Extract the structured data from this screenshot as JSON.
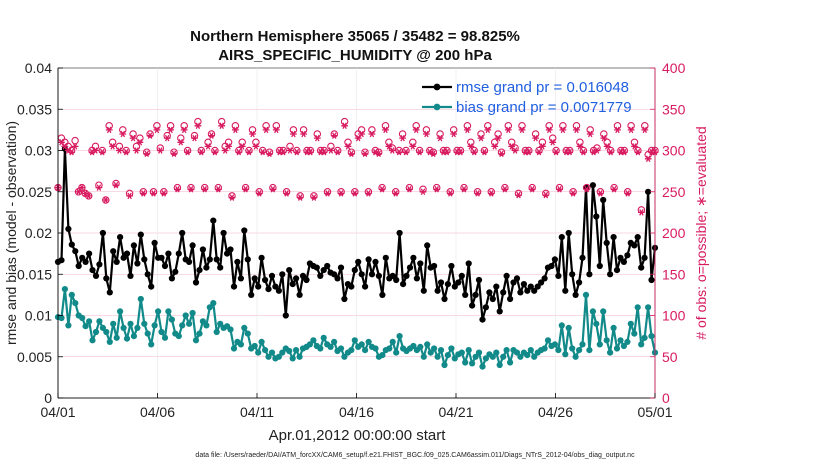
{
  "chart_data": {
    "type": "line",
    "title": "Northern Hemisphere 35065 / 35482 = 98.825%",
    "subtitle": "AIRS_SPECIFIC_HUMIDITY @ 200 hPa",
    "xlabel": "Apr.01,2012 00:00:00 start",
    "ylabel": "rmse and bias (model - observation)",
    "ylabel_right": "# of obs: o=possible; ∗=evaluated",
    "footnote": "data file: /Users/raeder/DAI/ATM_forcXX/CAM6_setup/f.e21.FHIST_BGC.f09_025.CAM6assim.011/Diags_NTrS_2012-04/obs_diag_output.nc",
    "xlim": [
      0,
      30
    ],
    "ylim": [
      0,
      0.04
    ],
    "ylim_right": [
      0,
      400
    ],
    "x_ticks": [
      "04/01",
      "04/06",
      "04/11",
      "04/16",
      "04/21",
      "04/26",
      "05/01"
    ],
    "x_tick_positions": [
      0,
      5,
      10,
      15,
      20,
      25,
      30
    ],
    "y_ticks": [
      "0",
      "0.005",
      "0.01",
      "0.015",
      "0.02",
      "0.025",
      "0.03",
      "0.035",
      "0.04"
    ],
    "y_tick_values": [
      0,
      0.005,
      0.01,
      0.015,
      0.02,
      0.025,
      0.03,
      0.035,
      0.04
    ],
    "y_right_ticks": [
      "0",
      "50",
      "100",
      "150",
      "200",
      "250",
      "300",
      "350",
      "400"
    ],
    "y_right_tick_values": [
      0,
      50,
      100,
      150,
      200,
      250,
      300,
      350,
      400
    ],
    "grid": true,
    "legend_position": "top-right",
    "series": [
      {
        "name": "rmse grand pr = 0.016048",
        "axis": "left",
        "color": "#000000",
        "values": [
          0.0165,
          0.0167,
          0.0302,
          0.0205,
          0.0186,
          0.0178,
          0.016,
          0.017,
          0.0165,
          0.0175,
          0.0155,
          0.0148,
          0.0162,
          0.02,
          0.0145,
          0.0128,
          0.0178,
          0.0165,
          0.0195,
          0.017,
          0.0175,
          0.0148,
          0.0185,
          0.0163,
          0.0198,
          0.0168,
          0.015,
          0.0135,
          0.0188,
          0.017,
          0.017,
          0.016,
          0.0175,
          0.0145,
          0.0153,
          0.0175,
          0.02,
          0.0168,
          0.0165,
          0.0185,
          0.014,
          0.0155,
          0.018,
          0.0158,
          0.0168,
          0.0215,
          0.0168,
          0.0158,
          0.02,
          0.0175,
          0.018,
          0.0135,
          0.0165,
          0.0145,
          0.0203,
          0.0168,
          0.0125,
          0.0145,
          0.0135,
          0.017,
          0.0143,
          0.0132,
          0.0148,
          0.0135,
          0.013,
          0.015,
          0.01,
          0.0155,
          0.0138,
          0.0145,
          0.0125,
          0.0148,
          0.0143,
          0.0163,
          0.016,
          0.0158,
          0.0148,
          0.0155,
          0.016,
          0.0152,
          0.015,
          0.0145,
          0.0158,
          0.012,
          0.0138,
          0.0135,
          0.0155,
          0.0165,
          0.015,
          0.0135,
          0.0168,
          0.015,
          0.0165,
          0.0148,
          0.0125,
          0.017,
          0.0145,
          0.0148,
          0.0143,
          0.02,
          0.0138,
          0.0148,
          0.0158,
          0.017,
          0.0145,
          0.0163,
          0.013,
          0.0185,
          0.0158,
          0.016,
          0.013,
          0.014,
          0.012,
          0.0138,
          0.016,
          0.0135,
          0.014,
          0.0148,
          0.0125,
          0.0163,
          0.0112,
          0.0125,
          0.0143,
          0.0095,
          0.011,
          0.0128,
          0.012,
          0.0135,
          0.0105,
          0.0128,
          0.0148,
          0.012,
          0.014,
          0.0145,
          0.0128,
          0.0138,
          0.013,
          0.0135,
          0.013,
          0.0135,
          0.014,
          0.0145,
          0.0158,
          0.016,
          0.0168,
          0.0148,
          0.0195,
          0.013,
          0.02,
          0.015,
          0.0125,
          0.014,
          0.017,
          0.0255,
          0.015,
          0.0258,
          0.022,
          0.016,
          0.024,
          0.0188,
          0.015,
          0.0195,
          0.0155,
          0.017,
          0.0165,
          0.0173,
          0.0188,
          0.0185,
          0.0195,
          0.0158,
          0.017,
          0.025,
          0.0143,
          0.0182
        ],
        "marker": "circle"
      },
      {
        "name": "bias grand pr = 0.0071779",
        "axis": "left",
        "color": "#138a8a",
        "values": [
          0.0098,
          0.0097,
          0.0132,
          0.0088,
          0.0125,
          0.0115,
          0.01,
          0.0097,
          0.0087,
          0.0093,
          0.007,
          0.008,
          0.0093,
          0.0085,
          0.008,
          0.0068,
          0.009,
          0.0073,
          0.0105,
          0.0085,
          0.0072,
          0.009,
          0.0075,
          0.0085,
          0.012,
          0.009,
          0.0078,
          0.0065,
          0.0088,
          0.0105,
          0.008,
          0.0073,
          0.0105,
          0.0095,
          0.0078,
          0.0075,
          0.0088,
          0.01,
          0.009,
          0.0103,
          0.007,
          0.0078,
          0.0093,
          0.0088,
          0.011,
          0.0115,
          0.008,
          0.009,
          0.0085,
          0.0087,
          0.0083,
          0.006,
          0.0068,
          0.0065,
          0.0085,
          0.0078,
          0.006,
          0.0063,
          0.0055,
          0.0068,
          0.0058,
          0.005,
          0.0055,
          0.0048,
          0.005,
          0.0055,
          0.006,
          0.0057,
          0.0048,
          0.0058,
          0.005,
          0.006,
          0.0062,
          0.0065,
          0.007,
          0.0063,
          0.006,
          0.0073,
          0.0065,
          0.0062,
          0.0068,
          0.0057,
          0.006,
          0.005,
          0.0055,
          0.0058,
          0.007,
          0.0062,
          0.0065,
          0.0058,
          0.0068,
          0.0062,
          0.006,
          0.005,
          0.0052,
          0.0058,
          0.006,
          0.0068,
          0.0055,
          0.0075,
          0.006,
          0.0057,
          0.006,
          0.0063,
          0.0058,
          0.0062,
          0.005,
          0.0065,
          0.0055,
          0.006,
          0.005,
          0.0058,
          0.004,
          0.0052,
          0.006,
          0.0048,
          0.0053,
          0.0055,
          0.0043,
          0.0058,
          0.0042,
          0.005,
          0.0055,
          0.0038,
          0.0048,
          0.0053,
          0.005,
          0.0055,
          0.004,
          0.005,
          0.0058,
          0.0043,
          0.0058,
          0.0055,
          0.005,
          0.0055,
          0.0052,
          0.0058,
          0.005,
          0.0055,
          0.0058,
          0.006,
          0.007,
          0.0063,
          0.0065,
          0.0058,
          0.0088,
          0.0053,
          0.0085,
          0.006,
          0.005,
          0.0058,
          0.0065,
          0.0125,
          0.0058,
          0.0105,
          0.009,
          0.0065,
          0.0105,
          0.007,
          0.0055,
          0.0085,
          0.006,
          0.007,
          0.0063,
          0.0068,
          0.009,
          0.0078,
          0.011,
          0.0065,
          0.0073,
          0.011,
          0.0075,
          0.0055
        ],
        "marker": "circle"
      },
      {
        "name": "possible",
        "axis": "right",
        "color": "#d81b60",
        "marker": "o",
        "values": [
          255,
          315,
          310,
          305,
          300,
          312,
          250,
          255,
          248,
          245,
          300,
          305,
          258,
          300,
          240,
          330,
          310,
          260,
          305,
          325,
          300,
          248,
          320,
          305,
          315,
          250,
          298,
          320,
          250,
          330,
          303,
          250,
          318,
          330,
          298,
          255,
          315,
          330,
          300,
          255,
          318,
          335,
          300,
          255,
          310,
          320,
          300,
          255,
          335,
          305,
          310,
          245,
          330,
          300,
          310,
          255,
          300,
          325,
          310,
          250,
          300,
          330,
          298,
          255,
          330,
          300,
          300,
          250,
          305,
          325,
          300,
          245,
          325,
          300,
          300,
          245,
          320,
          300,
          300,
          250,
          305,
          320,
          300,
          250,
          335,
          310,
          298,
          250,
          320,
          325,
          298,
          250,
          325,
          300,
          298,
          255,
          330,
          310,
          303,
          250,
          300,
          320,
          300,
          255,
          310,
          330,
          300,
          253,
          325,
          300,
          298,
          255,
          320,
          300,
          300,
          250,
          325,
          300,
          300,
          255,
          330,
          310,
          300,
          250,
          320,
          300,
          330,
          250,
          310,
          320,
          298,
          255,
          330,
          310,
          303,
          248,
          330,
          300,
          300,
          255,
          320,
          300,
          310,
          248,
          330,
          315,
          300,
          255,
          330,
          300,
          300,
          250,
          330,
          310,
          300,
          255,
          325,
          300,
          303,
          250,
          320,
          310,
          300,
          255,
          330,
          300,
          300,
          250,
          330,
          310,
          300,
          228,
          330,
          295,
          300,
          300
        ]
      },
      {
        "name": "evaluated",
        "axis": "right",
        "color": "#d81b60",
        "marker": "*",
        "values": [
          255,
          310,
          305,
          300,
          298,
          305,
          250,
          255,
          248,
          245,
          298,
          300,
          255,
          298,
          240,
          325,
          305,
          258,
          300,
          320,
          298,
          245,
          315,
          300,
          310,
          248,
          296,
          318,
          248,
          325,
          300,
          248,
          315,
          325,
          296,
          253,
          310,
          325,
          298,
          253,
          315,
          330,
          298,
          253,
          305,
          318,
          298,
          253,
          330,
          300,
          305,
          243,
          325,
          298,
          305,
          253,
          298,
          320,
          305,
          248,
          298,
          325,
          296,
          253,
          325,
          298,
          298,
          248,
          300,
          320,
          298,
          243,
          320,
          298,
          298,
          243,
          315,
          298,
          298,
          248,
          300,
          318,
          298,
          248,
          330,
          305,
          296,
          248,
          315,
          320,
          296,
          248,
          320,
          298,
          296,
          253,
          325,
          305,
          300,
          248,
          298,
          315,
          298,
          253,
          305,
          325,
          298,
          250,
          320,
          298,
          296,
          253,
          315,
          298,
          298,
          248,
          320,
          298,
          298,
          253,
          325,
          305,
          298,
          248,
          315,
          298,
          325,
          248,
          305,
          315,
          296,
          253,
          325,
          305,
          300,
          246,
          325,
          298,
          298,
          253,
          315,
          298,
          305,
          246,
          325,
          310,
          298,
          253,
          325,
          298,
          298,
          248,
          325,
          305,
          298,
          253,
          320,
          298,
          300,
          248,
          315,
          305,
          298,
          253,
          325,
          298,
          298,
          248,
          325,
          305,
          298,
          225,
          325,
          290,
          298,
          298
        ]
      }
    ]
  }
}
